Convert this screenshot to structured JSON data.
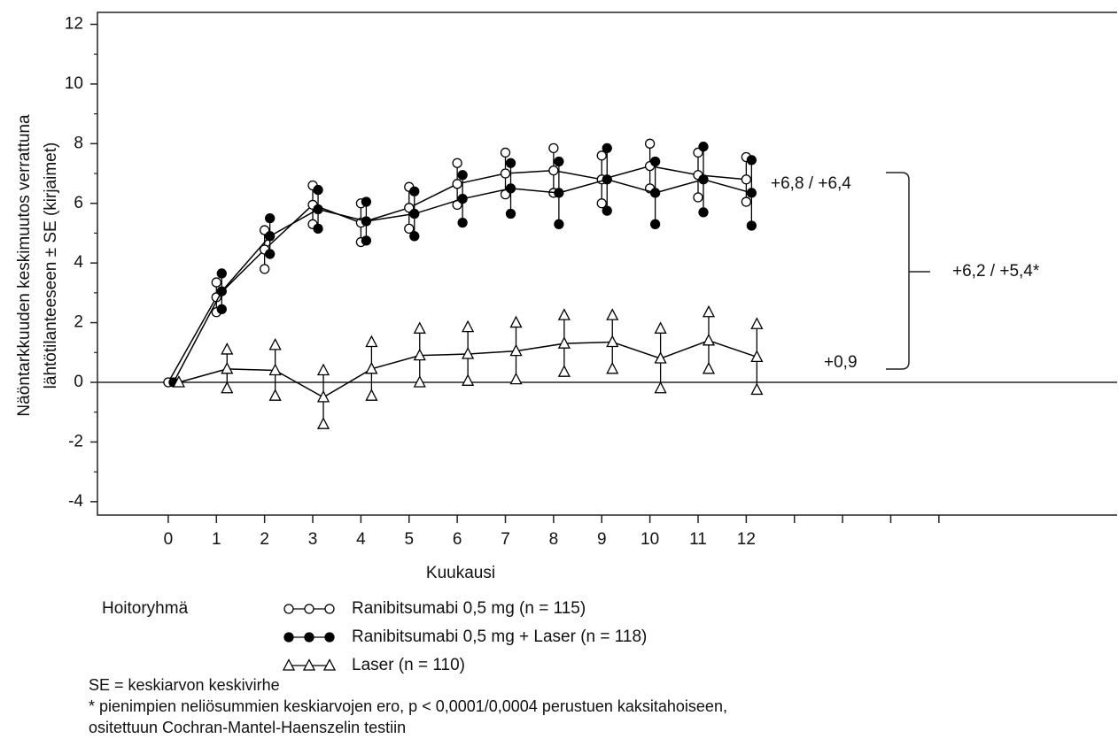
{
  "chart_data": {
    "type": "line",
    "ylabel": [
      "Näöntarkkuuden keskimuutos verrattuna",
      "lähtötilanteeseen ± SE (kirjaimet)"
    ],
    "xlabel": "Kuukausi",
    "x": [
      0,
      1,
      2,
      3,
      4,
      5,
      6,
      7,
      8,
      9,
      10,
      11,
      12
    ],
    "series": [
      {
        "name": "Ranibitsumabi 0,5 mg (n = 115)",
        "color": "#000000",
        "marker": "open-circle",
        "values": [
          0,
          2.85,
          4.45,
          5.95,
          5.35,
          5.85,
          6.65,
          7.0,
          7.1,
          6.8,
          7.25,
          6.95,
          6.8
        ],
        "errors": [
          0,
          0.5,
          0.65,
          0.65,
          0.65,
          0.7,
          0.7,
          0.7,
          0.75,
          0.8,
          0.75,
          0.75,
          0.75
        ]
      },
      {
        "name": "Ranibitsumabi 0,5 mg + Laser (n = 118)",
        "color": "#000000",
        "marker": "filled-circle",
        "values": [
          0,
          3.05,
          4.9,
          5.8,
          5.4,
          5.65,
          6.15,
          6.5,
          6.35,
          6.8,
          6.35,
          6.8,
          6.35
        ],
        "errors": [
          0,
          0.6,
          0.6,
          0.65,
          0.65,
          0.75,
          0.8,
          0.85,
          1.05,
          1.05,
          1.05,
          1.1,
          1.1
        ]
      },
      {
        "name": "Laser (n = 110)",
        "color": "#000000",
        "marker": "open-triangle",
        "values": [
          0,
          0.45,
          0.4,
          -0.5,
          0.45,
          0.9,
          0.95,
          1.05,
          1.3,
          1.35,
          0.8,
          1.4,
          0.85
        ],
        "errors": [
          0,
          0.65,
          0.85,
          0.9,
          0.9,
          0.9,
          0.9,
          0.95,
          0.95,
          0.9,
          1.0,
          0.95,
          1.1
        ]
      }
    ],
    "xlim": [
      -1.47,
      19.7
    ],
    "xticks": [
      0,
      1,
      2,
      3,
      4,
      5,
      6,
      7,
      8,
      9,
      10,
      11,
      12
    ],
    "minor_xticks": [
      13,
      14,
      15,
      16
    ],
    "ylim": [
      -4.45,
      12.4
    ],
    "yticks": [
      -4,
      -2,
      0,
      2,
      4,
      6,
      8,
      10,
      12
    ],
    "minor_yticks": [
      -3,
      -1,
      1,
      3,
      5,
      7,
      9,
      11
    ],
    "annotations": [
      "+6,8 / +6,4",
      "+6,2 / +5,4*",
      "+0,9"
    ],
    "legend_title": "Hoitoryhmä",
    "footnotes": [
      "SE = keskiarvon keskivirhe",
      "* pienimpien neliösummien keskiarvojen ero, p < 0,0001/0,0004 perustuen kaksitahoiseen,",
      "ositettuun Cochran-Mantel-Haenszelin testiin"
    ]
  }
}
